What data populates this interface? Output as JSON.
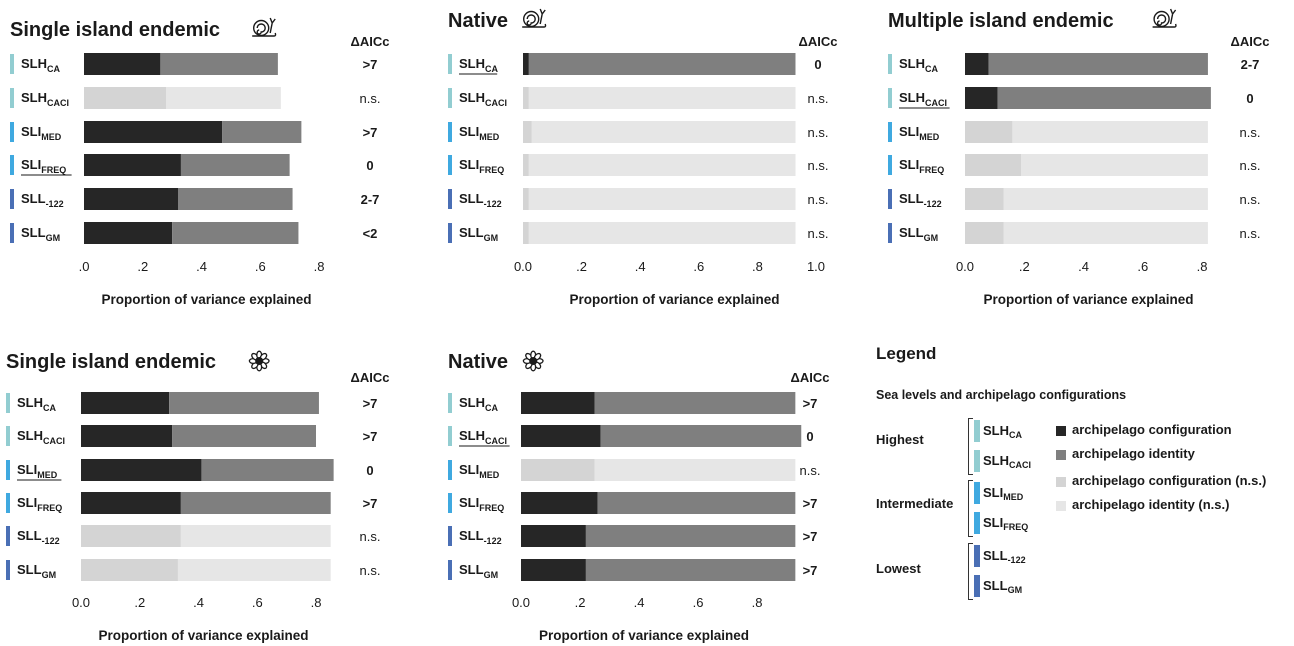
{
  "colors": {
    "config": "#262626",
    "identity": "#7f7f7f",
    "config_ns": "#d4d4d4",
    "identity_ns": "#e6e6e6",
    "highest": "#92cdd1",
    "intermediate": "#3fa9e0",
    "lowest": "#4a6fb5"
  },
  "icons": {
    "snail": "snail-icon",
    "flower": "flower-icon"
  },
  "levels": [
    {
      "main": "SLH",
      "sub": "CA",
      "group": "highest"
    },
    {
      "main": "SLH",
      "sub": "CACI",
      "group": "highest"
    },
    {
      "main": "SLI",
      "sub": "MED",
      "group": "intermediate"
    },
    {
      "main": "SLI",
      "sub": "FREQ",
      "group": "intermediate"
    },
    {
      "main": "SLL",
      "sub": "-122",
      "group": "lowest"
    },
    {
      "main": "SLL",
      "sub": "GM",
      "group": "lowest"
    }
  ],
  "chart_data": [
    {
      "type": "bar",
      "title": "Single island endemic",
      "icon": "snail-icon",
      "xlabel": "Proportion of variance explained",
      "xlim": [
        0,
        0.8
      ],
      "xticks": [
        ".0",
        ".2",
        ".4",
        ".6",
        ".8"
      ],
      "delta_header": "ΔAICc",
      "bars": [
        {
          "config": 0.26,
          "total": 0.66,
          "delta": ">7",
          "sig": true,
          "underline": false
        },
        {
          "config": 0.28,
          "total": 0.67,
          "delta": "n.s.",
          "sig": false,
          "underline": false
        },
        {
          "config": 0.47,
          "total": 0.74,
          "delta": ">7",
          "sig": true,
          "underline": false
        },
        {
          "config": 0.33,
          "total": 0.7,
          "delta": "0",
          "sig": true,
          "underline": true
        },
        {
          "config": 0.32,
          "total": 0.71,
          "delta": "2-7",
          "sig": true,
          "underline": false
        },
        {
          "config": 0.3,
          "total": 0.73,
          "delta": "<2",
          "sig": true,
          "underline": false
        }
      ]
    },
    {
      "type": "bar",
      "title": "Native",
      "icon": "snail-icon",
      "xlabel": "Proportion of variance explained",
      "xlim": [
        0,
        1.0
      ],
      "xticks": [
        "0.0",
        ".2",
        ".4",
        ".6",
        ".8",
        "1.0"
      ],
      "delta_header": "ΔAICc",
      "bars": [
        {
          "config": 0.02,
          "total": 0.93,
          "delta": "0",
          "sig": true,
          "underline": true
        },
        {
          "config": 0.02,
          "total": 0.93,
          "delta": "n.s.",
          "sig": false,
          "underline": false
        },
        {
          "config": 0.03,
          "total": 0.93,
          "delta": "n.s.",
          "sig": false,
          "underline": false
        },
        {
          "config": 0.02,
          "total": 0.93,
          "delta": "n.s.",
          "sig": false,
          "underline": false
        },
        {
          "config": 0.02,
          "total": 0.93,
          "delta": "n.s.",
          "sig": false,
          "underline": false
        },
        {
          "config": 0.02,
          "total": 0.93,
          "delta": "n.s.",
          "sig": false,
          "underline": false
        }
      ]
    },
    {
      "type": "bar",
      "title": "Multiple island endemic",
      "icon": "snail-icon",
      "xlabel": "Proportion of variance explained",
      "xlim": [
        0,
        0.8
      ],
      "xticks": [
        "0.0",
        ".2",
        ".4",
        ".6",
        ".8"
      ],
      "delta_header": "ΔAICc",
      "bars": [
        {
          "config": 0.08,
          "total": 0.82,
          "delta": "2-7",
          "sig": true,
          "underline": false
        },
        {
          "config": 0.11,
          "total": 0.83,
          "delta": "0",
          "sig": true,
          "underline": true
        },
        {
          "config": 0.16,
          "total": 0.82,
          "delta": "n.s.",
          "sig": false,
          "underline": false
        },
        {
          "config": 0.19,
          "total": 0.82,
          "delta": "n.s.",
          "sig": false,
          "underline": false
        },
        {
          "config": 0.13,
          "total": 0.82,
          "delta": "n.s.",
          "sig": false,
          "underline": false
        },
        {
          "config": 0.13,
          "total": 0.82,
          "delta": "n.s.",
          "sig": false,
          "underline": false
        }
      ]
    },
    {
      "type": "bar",
      "title": "Single island endemic",
      "icon": "flower-icon",
      "xlabel": "Proportion of variance explained",
      "xlim": [
        0,
        0.8
      ],
      "xticks": [
        "0.0",
        ".2",
        ".4",
        ".6",
        ".8"
      ],
      "delta_header": "ΔAICc",
      "bars": [
        {
          "config": 0.3,
          "total": 0.81,
          "delta": ">7",
          "sig": true,
          "underline": false
        },
        {
          "config": 0.31,
          "total": 0.8,
          "delta": ">7",
          "sig": true,
          "underline": false
        },
        {
          "config": 0.41,
          "total": 0.86,
          "delta": "0",
          "sig": true,
          "underline": true
        },
        {
          "config": 0.34,
          "total": 0.85,
          "delta": ">7",
          "sig": true,
          "underline": false
        },
        {
          "config": 0.34,
          "total": 0.85,
          "delta": "n.s.",
          "sig": false,
          "underline": false
        },
        {
          "config": 0.33,
          "total": 0.85,
          "delta": "n.s.",
          "sig": false,
          "underline": false
        }
      ]
    },
    {
      "type": "bar",
      "title": "Native",
      "icon": "flower-icon",
      "xlabel": "Proportion of variance explained",
      "xlim": [
        0,
        0.8
      ],
      "xticks": [
        "0.0",
        ".2",
        ".4",
        ".6",
        ".8"
      ],
      "delta_header": "ΔAICc",
      "bars": [
        {
          "config": 0.25,
          "total": 0.93,
          "delta": ">7",
          "sig": true,
          "underline": false
        },
        {
          "config": 0.27,
          "total": 0.95,
          "delta": "0",
          "sig": true,
          "underline": true
        },
        {
          "config": 0.25,
          "total": 0.93,
          "delta": "n.s.",
          "sig": false,
          "underline": false
        },
        {
          "config": 0.26,
          "total": 0.93,
          "delta": ">7",
          "sig": true,
          "underline": false
        },
        {
          "config": 0.22,
          "total": 0.93,
          "delta": ">7",
          "sig": true,
          "underline": false
        },
        {
          "config": 0.22,
          "total": 0.93,
          "delta": ">7",
          "sig": true,
          "underline": false
        }
      ]
    }
  ],
  "legend": {
    "title": "Legend",
    "subtitle": "Sea levels and archipelago configurations",
    "groups": [
      "Highest",
      "Intermediate",
      "Lowest"
    ],
    "keys": [
      "archipelago configuration",
      "archipelago identity",
      "archipelago configuration (n.s.)",
      "archipelago identity (n.s.)"
    ]
  }
}
